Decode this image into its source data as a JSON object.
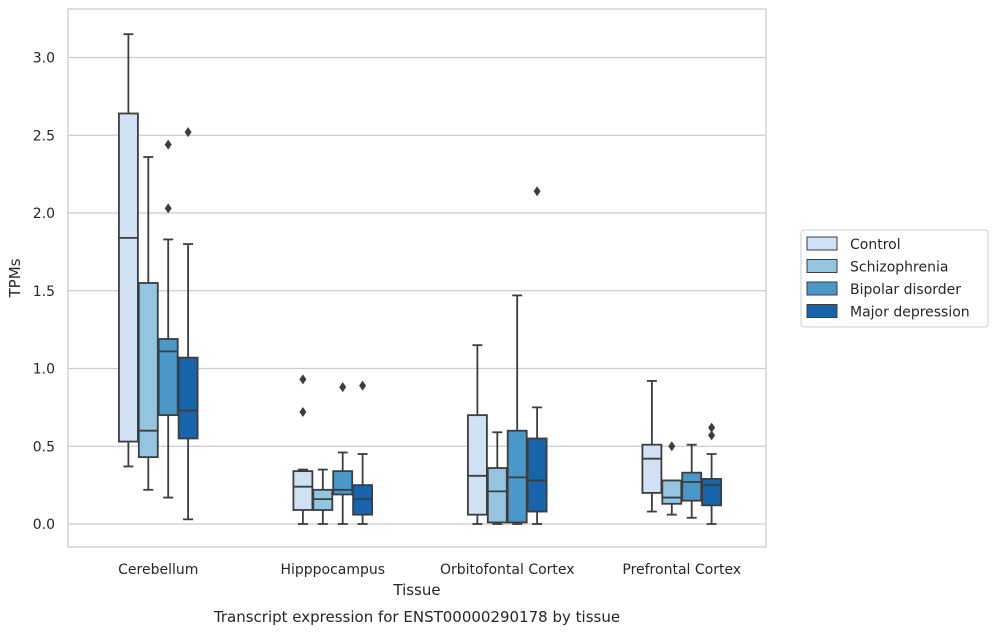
{
  "chart_data": {
    "type": "box",
    "title": "",
    "xlabel": "Tissue",
    "ylabel": "TPMs",
    "caption": "Transcript expression for ENST00000290178 by tissue",
    "ylim": [
      -0.15,
      3.3
    ],
    "yticks": [
      0.0,
      0.5,
      1.0,
      1.5,
      2.0,
      2.5,
      3.0
    ],
    "ytick_labels": [
      "0.0",
      "0.5",
      "1.0",
      "1.5",
      "2.0",
      "2.5",
      "3.0"
    ],
    "grid": "horizontal",
    "legend_position": "right",
    "categories": [
      "Cerebellum",
      "Hipppocampus",
      "Orbitofontal Cortex",
      "Prefrontal Cortex"
    ],
    "series": [
      {
        "name": "Control",
        "color": "#cfe1f2",
        "boxes": [
          {
            "whislo": 0.37,
            "q1": 0.53,
            "med": 1.84,
            "q3": 2.64,
            "whishi": 3.15,
            "fliers": []
          },
          {
            "whislo": 0.0,
            "q1": 0.09,
            "med": 0.24,
            "q3": 0.34,
            "whishi": 0.35,
            "fliers": [
              0.72,
              0.93
            ]
          },
          {
            "whislo": 0.0,
            "q1": 0.06,
            "med": 0.31,
            "q3": 0.7,
            "whishi": 1.15,
            "fliers": []
          },
          {
            "whislo": 0.08,
            "q1": 0.2,
            "med": 0.42,
            "q3": 0.51,
            "whishi": 0.92,
            "fliers": []
          }
        ]
      },
      {
        "name": "Schizophrenia",
        "color": "#94c4df",
        "boxes": [
          {
            "whislo": 0.22,
            "q1": 0.43,
            "med": 0.6,
            "q3": 1.55,
            "whishi": 2.36,
            "fliers": []
          },
          {
            "whislo": 0.0,
            "q1": 0.09,
            "med": 0.16,
            "q3": 0.22,
            "whishi": 0.35,
            "fliers": []
          },
          {
            "whislo": 0.0,
            "q1": 0.01,
            "med": 0.21,
            "q3": 0.36,
            "whishi": 0.59,
            "fliers": []
          },
          {
            "whislo": 0.06,
            "q1": 0.13,
            "med": 0.17,
            "q3": 0.28,
            "whishi": 0.28,
            "fliers": [
              0.5
            ]
          }
        ]
      },
      {
        "name": "Bipolar disorder",
        "color": "#4a98c9",
        "boxes": [
          {
            "whislo": 0.17,
            "q1": 0.7,
            "med": 1.11,
            "q3": 1.19,
            "whishi": 1.83,
            "fliers": [
              2.03,
              2.44
            ]
          },
          {
            "whislo": 0.0,
            "q1": 0.19,
            "med": 0.22,
            "q3": 0.34,
            "whishi": 0.46,
            "fliers": [
              0.88
            ]
          },
          {
            "whislo": 0.0,
            "q1": 0.01,
            "med": 0.3,
            "q3": 0.6,
            "whishi": 1.47,
            "fliers": []
          },
          {
            "whislo": 0.04,
            "q1": 0.15,
            "med": 0.27,
            "q3": 0.33,
            "whishi": 0.51,
            "fliers": []
          }
        ]
      },
      {
        "name": "Major depression",
        "color": "#1764ab",
        "boxes": [
          {
            "whislo": 0.03,
            "q1": 0.55,
            "med": 0.73,
            "q3": 1.07,
            "whishi": 1.8,
            "fliers": [
              2.52
            ]
          },
          {
            "whislo": 0.0,
            "q1": 0.06,
            "med": 0.16,
            "q3": 0.25,
            "whishi": 0.45,
            "fliers": [
              0.89
            ]
          },
          {
            "whislo": 0.0,
            "q1": 0.08,
            "med": 0.28,
            "q3": 0.55,
            "whishi": 0.75,
            "fliers": [
              2.14
            ]
          },
          {
            "whislo": 0.0,
            "q1": 0.12,
            "med": 0.25,
            "q3": 0.29,
            "whishi": 0.45,
            "fliers": [
              0.57,
              0.62
            ]
          }
        ]
      }
    ]
  }
}
